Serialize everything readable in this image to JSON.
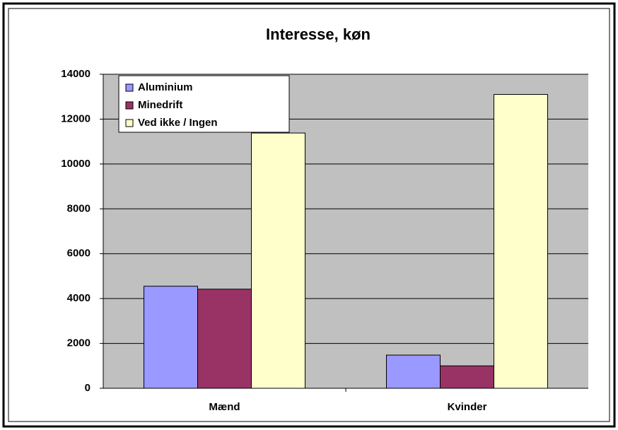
{
  "chart_data": {
    "type": "bar",
    "title": "Interesse, køn",
    "categories": [
      "Mænd",
      "Kvinder"
    ],
    "series": [
      {
        "name": "Aluminium",
        "color": "#9999ff",
        "values": [
          4550,
          1480
        ]
      },
      {
        "name": "Minedrift",
        "color": "#993366",
        "values": [
          4420,
          1000
        ]
      },
      {
        "name": "Ved ikke / Ingen",
        "color": "#ffffcc",
        "values": [
          11380,
          13100
        ]
      }
    ],
    "ylim": [
      0,
      14000
    ],
    "yticks": [
      0,
      2000,
      4000,
      6000,
      8000,
      10000,
      12000,
      14000
    ],
    "grid": true,
    "legend": "top-left",
    "plot_background": "#c0c0c0"
  }
}
